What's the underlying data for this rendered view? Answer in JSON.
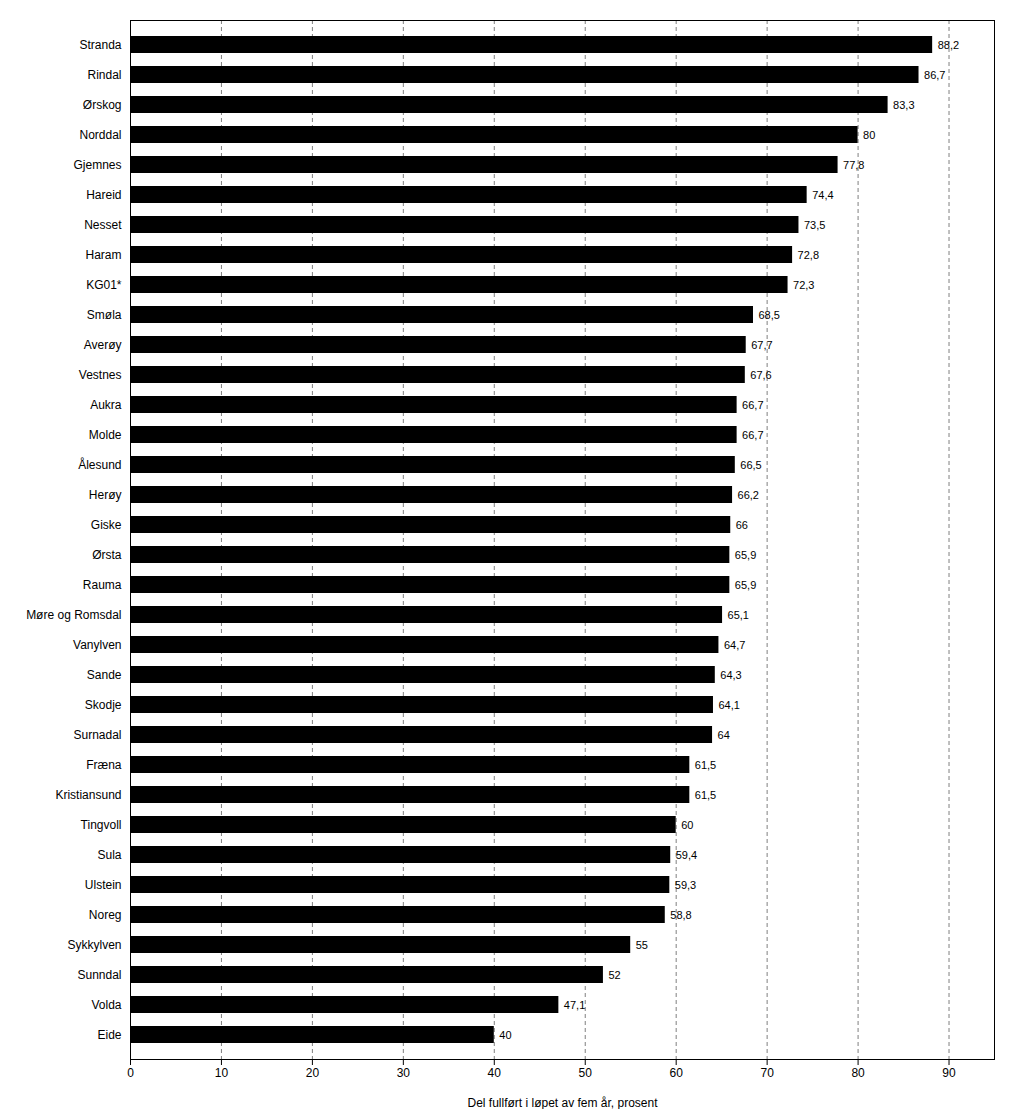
{
  "chart_data": {
    "type": "bar",
    "orientation": "horizontal",
    "xlabel": "Del fullført i løpet av fem år, prosent",
    "categories": [
      "Stranda",
      "Rindal",
      "Ørskog",
      "Norddal",
      "Gjemnes",
      "Hareid",
      "Nesset",
      "Haram",
      "KG01*",
      "Smøla",
      "Averøy",
      "Vestnes",
      "Aukra",
      "Molde",
      "Ålesund",
      "Herøy",
      "Giske",
      "Ørsta",
      "Rauma",
      "Møre og Romsdal",
      "Vanylven",
      "Sande",
      "Skodje",
      "Surnadal",
      "Fræna",
      "Kristiansund",
      "Tingvoll",
      "Sula",
      "Ulstein",
      "Noreg",
      "Sykkylven",
      "Sunndal",
      "Volda",
      "Eide"
    ],
    "values": [
      88.2,
      86.7,
      83.3,
      80.0,
      77.8,
      74.4,
      73.5,
      72.8,
      72.3,
      68.5,
      67.7,
      67.6,
      66.7,
      66.7,
      66.5,
      66.2,
      66.0,
      65.9,
      65.9,
      65.1,
      64.7,
      64.3,
      64.1,
      64.0,
      61.5,
      61.5,
      60.0,
      59.4,
      59.3,
      58.8,
      55.0,
      52.0,
      47.1,
      40.0
    ],
    "value_labels": [
      "88,2",
      "86,7",
      "83,3",
      "80",
      "77,8",
      "74,4",
      "73,5",
      "72,8",
      "72,3",
      "68,5",
      "67,7",
      "67,6",
      "66,7",
      "66,7",
      "66,5",
      "66,2",
      "66",
      "65,9",
      "65,9",
      "65,1",
      "64,7",
      "64,3",
      "64,1",
      "64",
      "61,5",
      "61,5",
      "60",
      "59,4",
      "59,3",
      "58,8",
      "55",
      "52",
      "47,1",
      "40"
    ],
    "data_labels": true,
    "xlim": [
      0,
      95
    ],
    "xticks": [
      0,
      10,
      20,
      30,
      40,
      50,
      60,
      70,
      80,
      90
    ],
    "grid": true
  }
}
